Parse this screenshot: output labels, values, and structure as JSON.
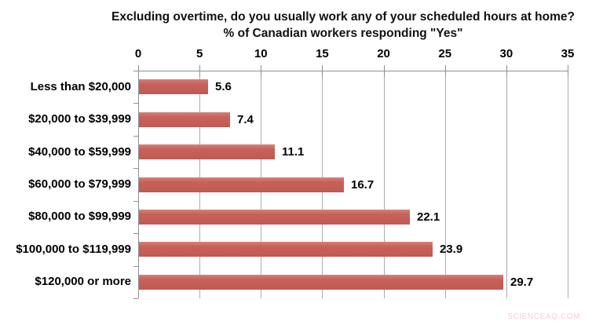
{
  "chart_data": {
    "type": "bar",
    "orientation": "horizontal",
    "title": "Excluding overtime, do you usually work any of your scheduled hours at home?",
    "subtitle": "% of Canadian workers responding \"Yes\"",
    "categories": [
      "Less than $20,000",
      "$20,000 to $39,999",
      "$40,000 to $59,999",
      "$60,000 to $79,999",
      "$80,000 to $99,999",
      "$100,000 to $119,999",
      "$120,000 or more"
    ],
    "values": [
      5.6,
      7.4,
      11.1,
      16.7,
      22.1,
      23.9,
      29.7
    ],
    "data_labels": [
      "5.6",
      "7.4",
      "11.1",
      "16.7",
      "22.1",
      "23.9",
      "29.7"
    ],
    "xlim": [
      0,
      35
    ],
    "x_ticks": [
      "0",
      "5",
      "10",
      "15",
      "20",
      "25",
      "30",
      "35"
    ],
    "grid": true,
    "legend_position": "none",
    "colors": {
      "bar": "#c7625b",
      "bar_highlight": "#d4837c",
      "bar_shadow": "#c05a53",
      "axis": "#8f8f8f",
      "gridline": "#aeaeae",
      "text": "#000000"
    }
  },
  "watermark": {
    "text": "SCIENCEAQ.COM",
    "color": "#f3ced6"
  }
}
